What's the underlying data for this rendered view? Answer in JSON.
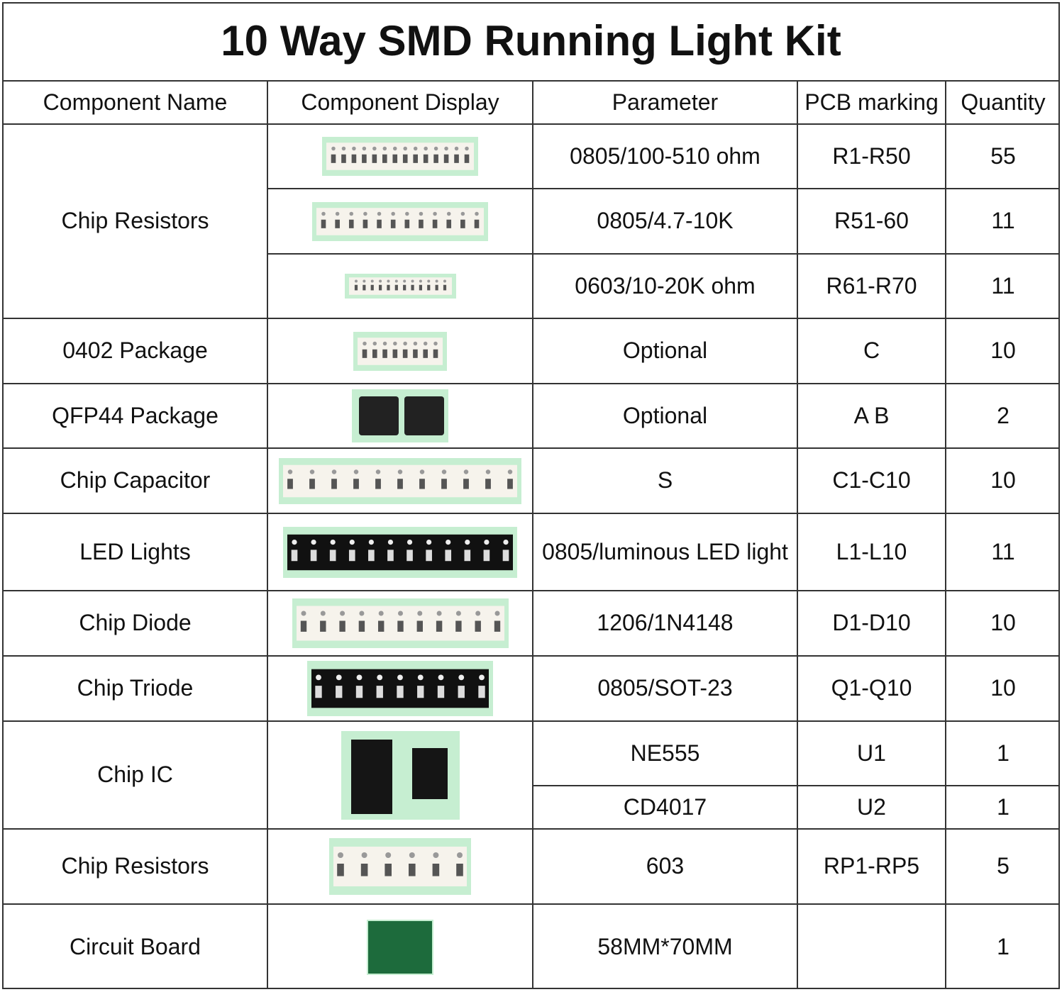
{
  "header": {
    "title": "10 Way SMD Running Light Kit"
  },
  "table": {
    "headers": [
      "Component Name",
      "Component Display",
      "Parameter",
      "PCB marking",
      "Quantity"
    ],
    "groups": [
      {
        "name": "Chip Resistors",
        "rows": [
          {
            "parameter": "0805/100-510 ohm",
            "pcb": "R1-R50",
            "quantity": "55"
          },
          {
            "parameter": "0805/4.7-10K",
            "pcb": "R51-60",
            "quantity": "11"
          },
          {
            "parameter": "0603/10-20K ohm",
            "pcb": "R61-R70",
            "quantity": "11"
          }
        ]
      },
      {
        "name": "0402 Package",
        "rows": [
          {
            "parameter": "Optional",
            "pcb": "C",
            "quantity": "10"
          }
        ]
      },
      {
        "name": "QFP44 Package",
        "rows": [
          {
            "parameter": "Optional",
            "pcb": "A B",
            "quantity": "2"
          }
        ]
      },
      {
        "name": "Chip Capacitor",
        "rows": [
          {
            "parameter": "S",
            "pcb": "C1-C10",
            "quantity": "10"
          }
        ]
      },
      {
        "name": "LED Lights",
        "rows": [
          {
            "parameter": "0805/luminous LED light",
            "pcb": "L1-L10",
            "quantity": "11"
          }
        ]
      },
      {
        "name": "Chip Diode",
        "rows": [
          {
            "parameter": "1206/1N4148",
            "pcb": "D1-D10",
            "quantity": "10"
          }
        ]
      },
      {
        "name": "Chip Triode",
        "rows": [
          {
            "parameter": "0805/SOT-23",
            "pcb": "Q1-Q10",
            "quantity": "10"
          }
        ]
      },
      {
        "name": "Chip IC",
        "rows": [
          {
            "parameter": "NE555",
            "pcb": "U1",
            "quantity": "1"
          },
          {
            "parameter": "CD4017",
            "pcb": "U2",
            "quantity": "1"
          }
        ]
      },
      {
        "name": "Chip Resistors",
        "rows": [
          {
            "parameter": "603",
            "pcb": "RP1-RP5",
            "quantity": "5"
          }
        ]
      },
      {
        "name": "Circuit Board",
        "rows": [
          {
            "parameter": "58MM*70MM",
            "quantity": "1"
          }
        ]
      }
    ]
  }
}
